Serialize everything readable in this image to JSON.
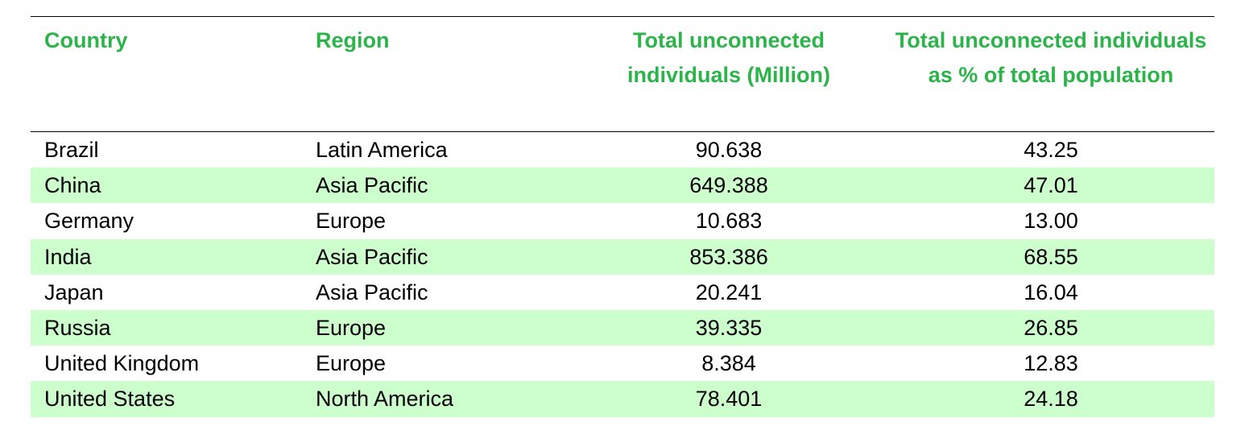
{
  "table": {
    "header": [
      "Country",
      "Region",
      "Total unconnected individuals (Million)",
      "Total unconnected individuals as % of total population"
    ],
    "rows": [
      [
        "Brazil",
        "Latin America",
        "90.638",
        "43.25"
      ],
      [
        "China",
        "Asia Pacific",
        "649.388",
        "47.01"
      ],
      [
        "Germany",
        "Europe",
        "10.683",
        "13.00"
      ],
      [
        "India",
        "Asia Pacific",
        "853.386",
        "68.55"
      ],
      [
        "Japan",
        "Asia Pacific",
        "20.241",
        "16.04"
      ],
      [
        "Russia",
        "Europe",
        "39.335",
        "26.85"
      ],
      [
        "United Kingdom",
        "Europe",
        "8.384",
        "12.83"
      ],
      [
        "United States",
        "North America",
        "78.401",
        "24.18"
      ]
    ]
  }
}
